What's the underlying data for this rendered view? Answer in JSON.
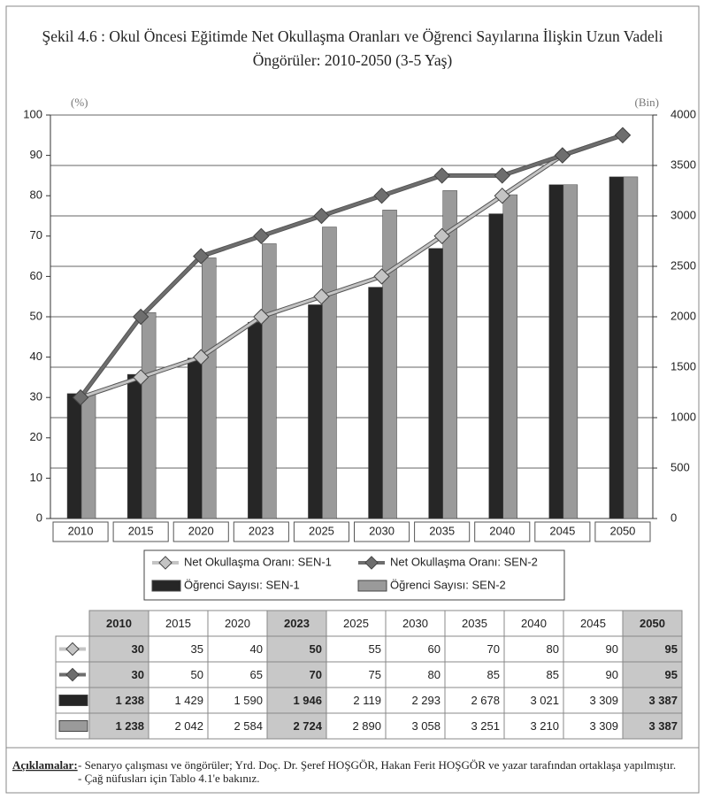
{
  "chart_data": {
    "type": "bar-line",
    "title": "Şekil 4.6 : Okul Öncesi Eğitimde Net Okullaşma Oranları ve Öğrenci Sayılarına İlişkin Uzun Vadeli Öngörüler: 2010-2050 (3-5 Yaş)",
    "y_label": "(%)",
    "y2_label": "(Bin)",
    "categories": [
      "2010",
      "2015",
      "2020",
      "2023",
      "2025",
      "2030",
      "2035",
      "2040",
      "2045",
      "2050"
    ],
    "series": [
      {
        "name": "Net Okullaşma Oranı: SEN-1",
        "type": "line",
        "color": "#c4c4c4",
        "values": [
          30,
          35,
          40,
          50,
          55,
          60,
          70,
          80,
          90,
          95
        ]
      },
      {
        "name": "Net Okullaşma Oranı: SEN-2",
        "type": "line",
        "color": "#6e6e6e",
        "values": [
          30,
          50,
          65,
          70,
          75,
          80,
          85,
          85,
          90,
          95
        ]
      },
      {
        "name": "Öğrenci Sayısı: SEN-1",
        "type": "bar",
        "axis": "y2",
        "color": "#262626",
        "values": [
          1238,
          1429,
          1590,
          1946,
          2119,
          2293,
          2678,
          3021,
          3309,
          3387
        ],
        "value_labels": [
          "1 238",
          "1 429",
          "1 590",
          "1 946",
          "2 119",
          "2 293",
          "2 678",
          "3 021",
          "3 309",
          "3 387"
        ]
      },
      {
        "name": "Öğrenci Sayısı: SEN-2",
        "type": "bar",
        "axis": "y2",
        "color": "#9a9a9a",
        "values": [
          1238,
          2042,
          2584,
          2724,
          2890,
          3058,
          3251,
          3210,
          3309,
          3387
        ],
        "value_labels": [
          "1 238",
          "2 042",
          "2 584",
          "2 724",
          "2 890",
          "3 058",
          "3 251",
          "3 210",
          "3 309",
          "3 387"
        ]
      }
    ],
    "ylim": [
      0,
      100
    ],
    "yticks": [
      0,
      10,
      20,
      30,
      40,
      50,
      60,
      70,
      80,
      90,
      100
    ],
    "y2lim": [
      0,
      4000
    ],
    "y2ticks": [
      0,
      500,
      1000,
      1500,
      2000,
      2500,
      3000,
      3500,
      4000
    ],
    "grid": true,
    "table_highlight": [
      0,
      3,
      9
    ]
  },
  "notes": {
    "label": "Açıklamalar:",
    "lines": [
      "- Senaryo çalışması ve öngörüler; Yrd. Doç. Dr. Şeref HOŞGÖR, Hakan Ferit HOŞGÖR ve yazar tarafından ortaklaşa yapılmıştır.",
      "- Çağ nüfusları için Tablo 4.1'e bakınız."
    ]
  }
}
